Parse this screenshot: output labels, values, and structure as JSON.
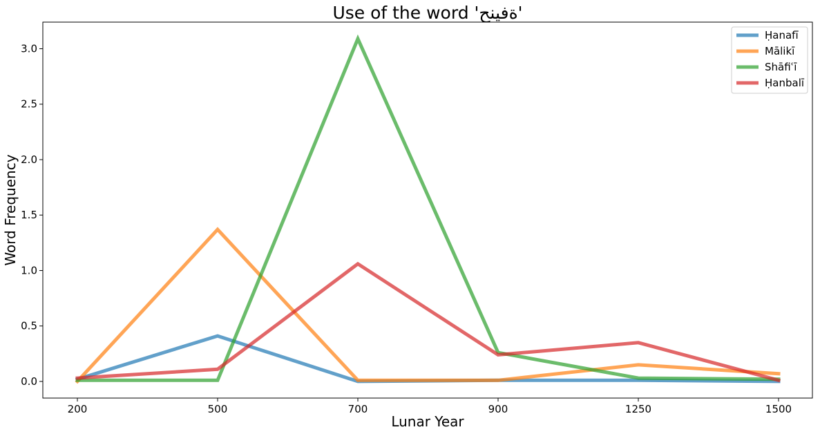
{
  "chart_data": {
    "type": "line",
    "title": "Use of the word 'ةفينح'",
    "xlabel": "Lunar Year",
    "ylabel": "Word Frequency",
    "categories": [
      "200",
      "500",
      "700",
      "900",
      "1250",
      "1500"
    ],
    "ylim": [
      -0.15,
      3.24
    ],
    "yticks": [
      "0.0",
      "0.5",
      "1.0",
      "1.5",
      "2.0",
      "2.5",
      "3.0"
    ],
    "grid": false,
    "legend_position": "top-right",
    "series": [
      {
        "name": "Ḥanafī",
        "color": "#1f77b4",
        "values": [
          0.02,
          0.41,
          0.0,
          0.01,
          0.01,
          0.0
        ]
      },
      {
        "name": "Mālikī",
        "color": "#ff7f0e",
        "values": [
          0.0,
          1.37,
          0.01,
          0.01,
          0.15,
          0.07
        ]
      },
      {
        "name": "Shāfiʿī",
        "color": "#2ca02c",
        "values": [
          0.01,
          0.01,
          3.09,
          0.26,
          0.03,
          0.02
        ]
      },
      {
        "name": "Ḥanbalī",
        "color": "#d62728",
        "values": [
          0.03,
          0.11,
          1.06,
          0.24,
          0.35,
          0.01
        ]
      }
    ]
  }
}
